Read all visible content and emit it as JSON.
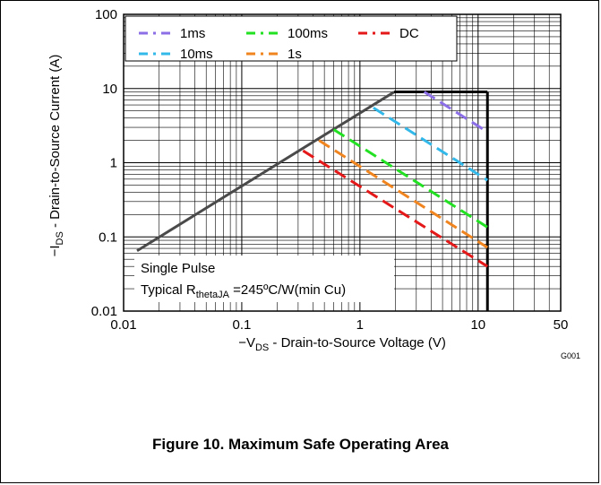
{
  "chart_data": {
    "type": "line",
    "xscale": "log",
    "yscale": "log",
    "xlim": [
      0.01,
      50
    ],
    "ylim": [
      0.01,
      100
    ],
    "xticks": [
      "0.01",
      "0.1",
      "1",
      "10",
      "50"
    ],
    "yticks": [
      "100",
      "10",
      "1",
      "0.1",
      "0.01"
    ],
    "xlabel_parts": [
      "−V",
      "DS",
      " - Drain-to-Source Voltage (V)"
    ],
    "ylabel_parts": [
      "−I",
      "DS",
      " - Drain-to-Source Current (A)"
    ],
    "grid": true,
    "legend_position": "top",
    "annotation_line1": "Single Pulse",
    "annotation_line2_parts": [
      "Typical R",
      "thetaJA",
      " =245ºC/W(min Cu)"
    ],
    "figure_code": "G001",
    "boundary": {
      "rdson_line": [
        [
          0.013,
          0.065
        ],
        [
          1.95,
          9.0
        ]
      ],
      "current_limit": [
        [
          1.95,
          9.0
        ],
        [
          12,
          9.0
        ]
      ],
      "voltage_limit": [
        [
          12,
          9.0
        ],
        [
          12,
          0.01
        ]
      ]
    },
    "series": [
      {
        "name": "1ms",
        "color": "#8c6fe6",
        "points": [
          [
            3.5,
            9.0
          ],
          [
            12,
            2.6
          ]
        ]
      },
      {
        "name": "10ms",
        "color": "#33b8ea",
        "points": [
          [
            1.3,
            5.5
          ],
          [
            12,
            0.58
          ]
        ]
      },
      {
        "name": "100ms",
        "color": "#22e022",
        "points": [
          [
            0.6,
            2.8
          ],
          [
            12,
            0.135
          ]
        ]
      },
      {
        "name": "1s",
        "color": "#f0841e",
        "points": [
          [
            0.45,
            2.0
          ],
          [
            12,
            0.072
          ]
        ]
      },
      {
        "name": "DC",
        "color": "#e41818",
        "points": [
          [
            0.33,
            1.45
          ],
          [
            12,
            0.04
          ]
        ]
      }
    ]
  },
  "caption": "Figure 10. Maximum Safe Operating Area"
}
